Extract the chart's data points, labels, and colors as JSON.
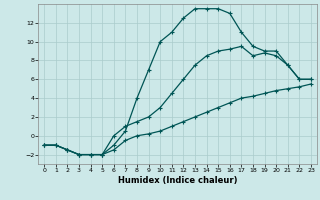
{
  "xlabel": "Humidex (Indice chaleur)",
  "background_color": "#cce8e8",
  "grid_color": "#aacccc",
  "line_color": "#005555",
  "xlim": [
    -0.5,
    23.5
  ],
  "ylim": [
    -3,
    14
  ],
  "xticks": [
    0,
    1,
    2,
    3,
    4,
    5,
    6,
    7,
    8,
    9,
    10,
    11,
    12,
    13,
    14,
    15,
    16,
    17,
    18,
    19,
    20,
    21,
    22,
    23
  ],
  "yticks": [
    -2,
    0,
    2,
    4,
    6,
    8,
    10,
    12
  ],
  "line1_x": [
    0,
    1,
    2,
    3,
    4,
    5,
    6,
    7,
    8,
    9,
    10,
    11,
    12,
    13,
    14,
    15,
    16,
    17,
    18,
    19,
    20,
    21,
    22,
    23
  ],
  "line1_y": [
    -1,
    -1,
    -1.5,
    -2,
    -2,
    -2,
    -1.5,
    -0.5,
    0.0,
    0.2,
    0.5,
    1.0,
    1.5,
    2.0,
    2.5,
    3.0,
    3.5,
    4.0,
    4.2,
    4.5,
    4.8,
    5.0,
    5.2,
    5.5
  ],
  "line2_x": [
    0,
    1,
    2,
    3,
    4,
    5,
    6,
    7,
    8,
    9,
    10,
    11,
    12,
    13,
    14,
    15,
    16,
    17,
    18,
    19,
    20,
    21,
    22,
    23
  ],
  "line2_y": [
    -1,
    -1,
    -1.5,
    -2,
    -2,
    -2,
    0.0,
    1.0,
    1.5,
    2.0,
    3.0,
    4.5,
    6.0,
    7.5,
    8.5,
    9.0,
    9.2,
    9.5,
    8.5,
    8.8,
    8.5,
    7.5,
    6.0,
    6.0
  ],
  "line3_x": [
    0,
    1,
    2,
    3,
    4,
    5,
    6,
    7,
    8,
    9,
    10,
    11,
    12,
    13,
    14,
    15,
    16,
    17,
    18,
    19,
    20,
    21,
    22,
    23
  ],
  "line3_y": [
    -1,
    -1,
    -1.5,
    -2,
    -2,
    -2,
    -1.0,
    0.5,
    4.0,
    7.0,
    10.0,
    11.0,
    12.5,
    13.5,
    13.5,
    13.5,
    13.0,
    11.0,
    9.5,
    9.0,
    9.0,
    7.5,
    6.0,
    6.0
  ]
}
